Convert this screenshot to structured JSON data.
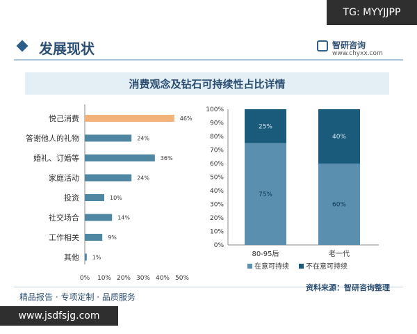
{
  "overlay": {
    "top_right_label": "TG: MYYJJPP",
    "bottom_left_label": "www.jsdfsjg.com"
  },
  "header": {
    "title": "发展现状",
    "brand_name": "智研咨询",
    "brand_url": "www.chyxx.com"
  },
  "footer": {
    "left_text": "精品报告 · 专项定制 · 品质服务",
    "source": "资料来源：智研咨询整理"
  },
  "colors": {
    "accent_bar": "#f2b27a",
    "bar": "#4f87a2",
    "dark_segment": "#1a5a7a",
    "light_segment": "#5b8fb0"
  },
  "chart_data": [
    {
      "type": "bar",
      "orientation": "horizontal",
      "title": "消费观念及钻石可持续性占比详情",
      "categories": [
        "悦己消费",
        "答谢他人的礼物",
        "婚礼、订婚等",
        "家庭活动",
        "投资",
        "社交场合",
        "工作相关",
        "其他"
      ],
      "values": [
        46,
        24,
        36,
        24,
        10,
        14,
        9,
        1
      ],
      "value_labels": [
        "46%",
        "24%",
        "36%",
        "24%",
        "10%",
        "14%",
        "9%",
        "1%"
      ],
      "xlim": [
        0,
        50
      ],
      "x_ticks": [
        "0%",
        "10%",
        "20%",
        "30%",
        "40%",
        "50%"
      ],
      "highlight_index": 0,
      "grid": false
    },
    {
      "type": "bar",
      "stacked": true,
      "percent": true,
      "categories": [
        "80-95后",
        "老一代"
      ],
      "series": [
        {
          "name": "在意可持续",
          "values": [
            75,
            60
          ],
          "labels": [
            "75%",
            "60%"
          ]
        },
        {
          "name": "不在意可持续",
          "values": [
            25,
            40
          ],
          "labels": [
            "25%",
            "40%"
          ]
        }
      ],
      "ylim": [
        0,
        100
      ],
      "y_ticks": [
        "0%",
        "10%",
        "20%",
        "30%",
        "40%",
        "50%",
        "60%",
        "70%",
        "80%",
        "90%",
        "100%"
      ],
      "legend": "bottom",
      "grid": false
    }
  ]
}
